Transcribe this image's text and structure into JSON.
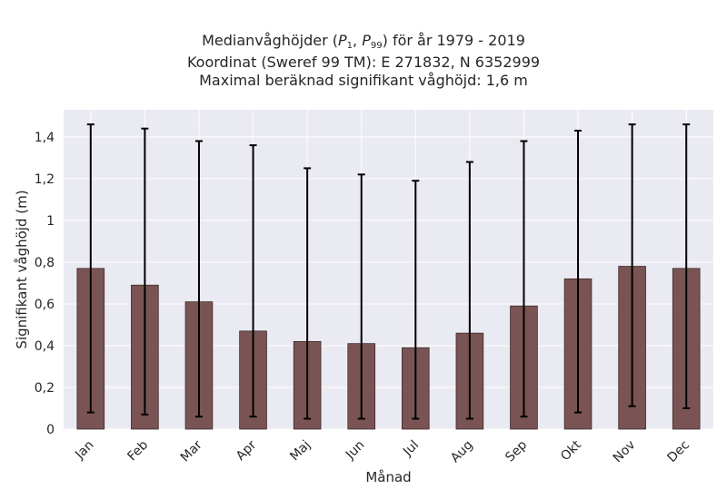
{
  "chart_data": {
    "type": "bar",
    "title_line1_prefix": "Medianvåghöjder (",
    "title_p1": "P",
    "title_p1_sub": "1",
    "title_sep": ", ",
    "title_p99": "P",
    "title_p99_sub": "99",
    "title_line1_suffix": ") för år 1979 - 2019",
    "title_line2": "Koordinat (Sweref 99 TM): E 271832, N 6352999",
    "title_line3": "Maximal beräknad signifikant våghöjd: 1,6 m",
    "xlabel": "Månad",
    "ylabel": "Signifikant våghöjd (m)",
    "categories": [
      "Jan",
      "Feb",
      "Mar",
      "Apr",
      "Maj",
      "Jun",
      "Jul",
      "Aug",
      "Sep",
      "Okt",
      "Nov",
      "Dec"
    ],
    "values": [
      0.77,
      0.69,
      0.61,
      0.47,
      0.42,
      0.41,
      0.39,
      0.46,
      0.59,
      0.72,
      0.78,
      0.77
    ],
    "error_low": [
      0.08,
      0.07,
      0.06,
      0.06,
      0.05,
      0.05,
      0.05,
      0.05,
      0.06,
      0.08,
      0.11,
      0.1
    ],
    "error_high": [
      1.46,
      1.44,
      1.38,
      1.36,
      1.25,
      1.22,
      1.19,
      1.28,
      1.38,
      1.43,
      1.46,
      1.46
    ],
    "yticks": [
      0,
      0.2,
      0.4,
      0.6,
      0.8,
      1,
      1.2,
      1.4
    ],
    "ytick_labels": [
      "0",
      "0,2",
      "0,4",
      "0,6",
      "0,8",
      "1",
      "1,2",
      "1,4"
    ],
    "ylim": [
      0,
      1.53
    ],
    "grid": true,
    "colors": {
      "bar": "#7a5454",
      "bar_edge": "#3f2a2a",
      "error": "#000000",
      "plot_bg": "#eaeaf2",
      "grid": "#ffffff"
    }
  }
}
